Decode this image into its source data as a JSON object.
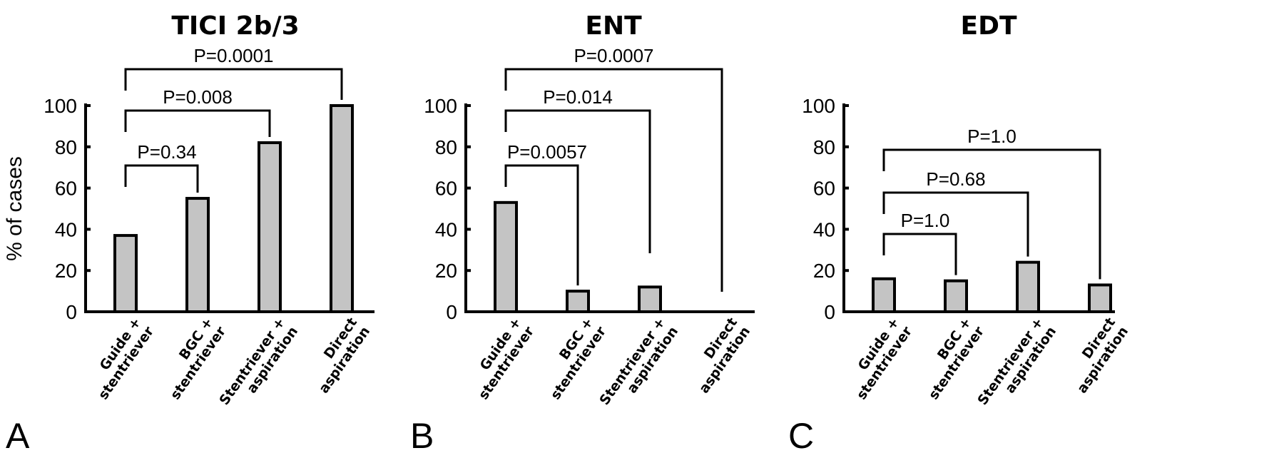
{
  "colors": {
    "bar_fill": "#c4c4c4",
    "stroke": "#000000"
  },
  "chart_data": [
    {
      "type": "bar",
      "panel": "A",
      "title": "TICI 2b/3",
      "ylabel": "% of cases",
      "ylim": [
        0,
        100
      ],
      "yticks": [
        0,
        20,
        40,
        60,
        80,
        100
      ],
      "categories": [
        [
          "Guide +",
          "stentriever"
        ],
        [
          "BGC +",
          "stentriever"
        ],
        [
          "Stentriever +",
          "aspiration"
        ],
        [
          "Direct",
          "aspiration"
        ]
      ],
      "values": [
        37,
        55,
        82,
        100
      ],
      "comparisons": [
        {
          "from": 0,
          "to": 1,
          "label": "P=0.34"
        },
        {
          "from": 0,
          "to": 2,
          "label": "P=0.008"
        },
        {
          "from": 0,
          "to": 3,
          "label": "P=0.0001"
        }
      ]
    },
    {
      "type": "bar",
      "panel": "B",
      "title": "ENT",
      "ylabel": "",
      "ylim": [
        0,
        100
      ],
      "yticks": [
        0,
        20,
        40,
        60,
        80,
        100
      ],
      "categories": [
        [
          "Guide +",
          "stentriever"
        ],
        [
          "BGC +",
          "stentriever"
        ],
        [
          "Stentriever +",
          "aspiration"
        ],
        [
          "Direct",
          "aspiration"
        ]
      ],
      "values": [
        53,
        10,
        12,
        0
      ],
      "comparisons": [
        {
          "from": 0,
          "to": 1,
          "label": "P=0.0057"
        },
        {
          "from": 0,
          "to": 2,
          "label": "P=0.014"
        },
        {
          "from": 0,
          "to": 3,
          "label": "P=0.0007"
        }
      ]
    },
    {
      "type": "bar",
      "panel": "C",
      "title": "EDT",
      "ylabel": "",
      "ylim": [
        0,
        100
      ],
      "yticks": [
        0,
        20,
        40,
        60,
        80,
        100
      ],
      "categories": [
        [
          "Guide +",
          "stentriever"
        ],
        [
          "BGC +",
          "stentriever"
        ],
        [
          "Stentriever +",
          "aspiration"
        ],
        [
          "Direct",
          "aspiration"
        ]
      ],
      "values": [
        16,
        15,
        24,
        13
      ],
      "comparisons": [
        {
          "from": 0,
          "to": 1,
          "label": "P=1.0"
        },
        {
          "from": 0,
          "to": 2,
          "label": "P=0.68"
        },
        {
          "from": 0,
          "to": 3,
          "label": "P=1.0"
        }
      ]
    }
  ]
}
